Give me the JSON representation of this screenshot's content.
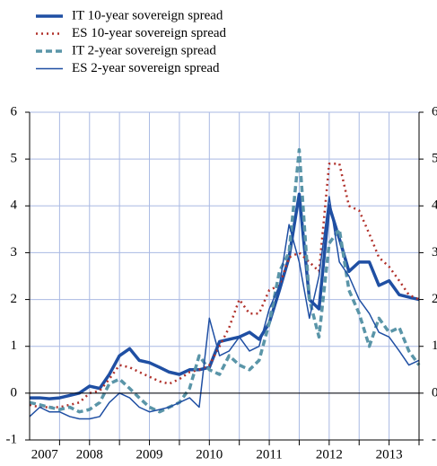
{
  "chart_data": {
    "type": "line",
    "series": [
      {
        "name": "IT 10-year sovereign spread",
        "color": "#1f4fa3",
        "width": 3.5,
        "dash": "none",
        "values": [
          -0.1,
          -0.1,
          -0.12,
          -0.1,
          -0.05,
          0.0,
          0.15,
          0.1,
          0.4,
          0.8,
          0.95,
          0.7,
          0.65,
          0.55,
          0.45,
          0.4,
          0.5,
          0.5,
          0.55,
          1.1,
          1.15,
          1.2,
          1.3,
          1.15,
          1.5,
          2.2,
          2.9,
          4.25,
          2.0,
          1.8,
          4.0,
          3.3,
          2.6,
          2.8,
          2.8,
          2.3,
          2.4,
          2.1,
          2.05,
          2.0
        ]
      },
      {
        "name": "ES 10-year sovereign spread",
        "color": "#b0302a",
        "width": 2.5,
        "dash": "2,4",
        "values": [
          -0.25,
          -0.3,
          -0.3,
          -0.3,
          -0.25,
          -0.2,
          0.0,
          0.05,
          0.3,
          0.6,
          0.55,
          0.45,
          0.35,
          0.25,
          0.2,
          0.3,
          0.45,
          0.5,
          0.6,
          1.0,
          1.4,
          2.0,
          1.7,
          1.7,
          2.2,
          2.3,
          2.9,
          3.0,
          2.8,
          2.6,
          4.9,
          4.9,
          4.0,
          3.9,
          3.4,
          2.9,
          2.7,
          2.4,
          2.1,
          2.0
        ]
      },
      {
        "name": "IT 2-year sovereign spread",
        "color": "#5a95a8",
        "width": 3.5,
        "dash": "7,4",
        "values": [
          -0.2,
          -0.25,
          -0.3,
          -0.35,
          -0.3,
          -0.4,
          -0.35,
          -0.2,
          0.2,
          0.3,
          0.1,
          -0.1,
          -0.3,
          -0.4,
          -0.3,
          -0.2,
          0.1,
          0.8,
          0.5,
          0.4,
          0.8,
          0.6,
          0.5,
          0.7,
          1.5,
          2.6,
          3.0,
          5.2,
          2.0,
          1.2,
          3.2,
          3.5,
          2.2,
          1.7,
          1.0,
          1.6,
          1.3,
          1.4,
          0.9,
          0.6
        ]
      },
      {
        "name": "ES 2-year sovereign spread",
        "color": "#1f4fa3",
        "width": 1.5,
        "dash": "none",
        "values": [
          -0.5,
          -0.3,
          -0.4,
          -0.4,
          -0.5,
          -0.55,
          -0.55,
          -0.5,
          -0.2,
          0.0,
          -0.1,
          -0.3,
          -0.4,
          -0.35,
          -0.3,
          -0.2,
          -0.1,
          -0.3,
          1.6,
          0.8,
          0.9,
          1.2,
          0.9,
          1.0,
          1.8,
          2.3,
          3.6,
          2.8,
          1.6,
          2.5,
          4.2,
          2.8,
          2.5,
          2.0,
          1.7,
          1.3,
          1.2,
          0.9,
          0.6,
          0.7
        ]
      }
    ],
    "x": [
      2007.5,
      2007.67,
      2007.83,
      2008.0,
      2008.17,
      2008.33,
      2008.5,
      2008.67,
      2008.83,
      2009.0,
      2009.17,
      2009.33,
      2009.5,
      2009.67,
      2009.83,
      2010.0,
      2010.17,
      2010.33,
      2010.5,
      2010.67,
      2010.83,
      2011.0,
      2011.17,
      2011.33,
      2011.5,
      2011.67,
      2011.83,
      2012.0,
      2012.17,
      2012.33,
      2012.5,
      2012.67,
      2012.83,
      2013.0,
      2013.17,
      2013.33,
      2013.5,
      2013.67,
      2013.83,
      2014.0
    ],
    "xlim": [
      2007.5,
      2014.0
    ],
    "xticks": [
      {
        "value": 2007.75,
        "label": "2007"
      },
      {
        "value": 2008.5,
        "label": "2008"
      },
      {
        "value": 2009.5,
        "label": "2009"
      },
      {
        "value": 2010.5,
        "label": "2010"
      },
      {
        "value": 2011.5,
        "label": "2011"
      },
      {
        "value": 2012.5,
        "label": "2012"
      },
      {
        "value": 2013.5,
        "label": "2013"
      }
    ],
    "xgrid": [
      2008,
      2008.5,
      2009,
      2009.5,
      2010,
      2010.5,
      2011,
      2011.5,
      2012,
      2012.5,
      2013,
      2013.5,
      2014
    ],
    "ylim": [
      -1,
      6
    ],
    "yticks": [
      -1,
      0,
      1,
      2,
      3,
      4,
      5,
      6
    ],
    "y2lim": [
      -1,
      6
    ],
    "y2ticks": [
      -1,
      0,
      1,
      2,
      3,
      4,
      5,
      6
    ],
    "grid": true,
    "grid_color": "#a9b9e3",
    "legend": "top-left"
  }
}
